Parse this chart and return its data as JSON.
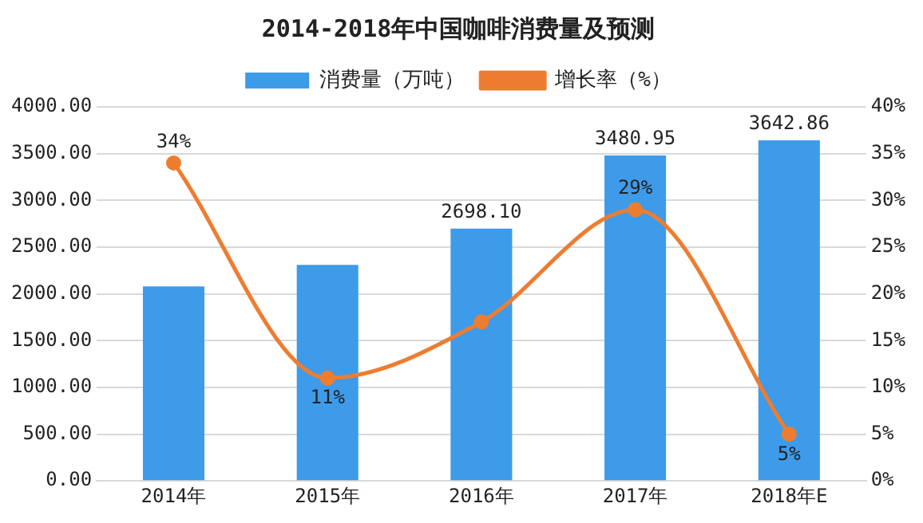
{
  "chart_data": {
    "type": "bar",
    "title": "2014-2018年中国咖啡消费量及预测",
    "categories": [
      "2014年",
      "2015年",
      "2016年",
      "2017年",
      "2018年E"
    ],
    "series": [
      {
        "name": "消费量（万吨）",
        "color": "#3d9be9",
        "values": [
          2080,
          2310,
          2698.1,
          3480.95,
          3642.86
        ],
        "value_labels": [
          null,
          null,
          "2698.10",
          "3480.95",
          "3642.86"
        ]
      },
      {
        "name": "增长率（%）",
        "type": "line",
        "axis": "y2",
        "color": "#ed7d31",
        "values": [
          34,
          11,
          17,
          29,
          5
        ],
        "value_labels": [
          "34%",
          "11%",
          null,
          "29%",
          "5%"
        ]
      }
    ],
    "ylim": [
      0,
      4000
    ],
    "yticks": [
      {
        "value": 0,
        "label": "0.00"
      },
      {
        "value": 500,
        "label": "500.00"
      },
      {
        "value": 1000,
        "label": "1000.00"
      },
      {
        "value": 1500,
        "label": "1500.00"
      },
      {
        "value": 2000,
        "label": "2000.00"
      },
      {
        "value": 2500,
        "label": "2500.00"
      },
      {
        "value": 3000,
        "label": "3000.00"
      },
      {
        "value": 3500,
        "label": "3500.00"
      },
      {
        "value": 4000,
        "label": "4000.00"
      }
    ],
    "y2lim": [
      0,
      40
    ],
    "y2ticks": [
      {
        "value": 0,
        "label": "0%"
      },
      {
        "value": 5,
        "label": "5%"
      },
      {
        "value": 10,
        "label": "10%"
      },
      {
        "value": 15,
        "label": "15%"
      },
      {
        "value": 20,
        "label": "20%"
      },
      {
        "value": 25,
        "label": "25%"
      },
      {
        "value": 30,
        "label": "30%"
      },
      {
        "value": 35,
        "label": "35%"
      },
      {
        "value": 40,
        "label": "40%"
      }
    ],
    "grid": "y",
    "legend": "top",
    "marker": "circle"
  }
}
